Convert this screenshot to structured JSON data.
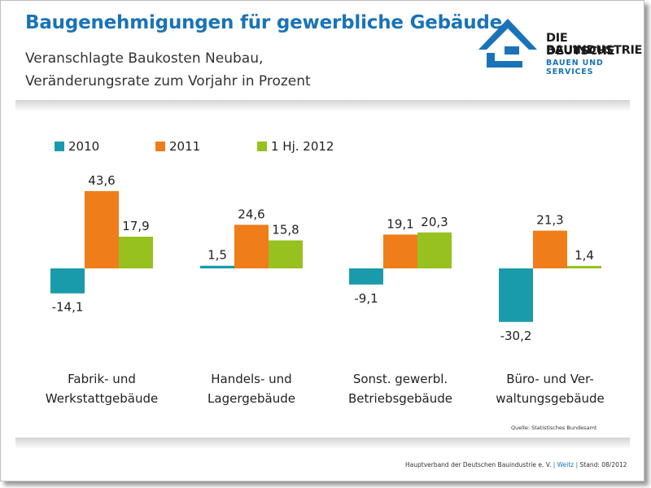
{
  "header": {
    "title": "Baugenehmigungen für gewerbliche Gebäude",
    "subtitle_line1": "Veranschlagte Baukosten Neubau,",
    "subtitle_line2": "Veränderungsrate zum Vorjahr in Prozent"
  },
  "logo": {
    "line1": "DIE DEUTSCHE",
    "line2": "BAUINDUSTRIE",
    "line3": "BAUEN UND SERVICES",
    "icon": "house-roof-icon",
    "color": "#1a73b8"
  },
  "colors": {
    "2010": "#1a9bab",
    "2011": "#ef7d1a",
    "1 Hj. 2012": "#97c11f",
    "title": "#1a73b8"
  },
  "chart_data": {
    "type": "bar",
    "categories": [
      [
        "Fabrik- und",
        "Werkstattgebäude"
      ],
      [
        "Handels- und",
        "Lagergebäude"
      ],
      [
        "Sonst. gewerbl.",
        "Betriebsgebäude"
      ],
      [
        "Büro- und Ver-",
        "waltungsgebäude"
      ]
    ],
    "series": [
      {
        "name": "2010",
        "values": [
          -14.1,
          1.5,
          -9.1,
          -30.2
        ],
        "labels": [
          "-14,1",
          "1,5",
          "-9,1",
          "-30,2"
        ]
      },
      {
        "name": "2011",
        "values": [
          43.6,
          24.6,
          19.1,
          21.3
        ],
        "labels": [
          "43,6",
          "24,6",
          "19,1",
          "21,3"
        ]
      },
      {
        "name": "1 Hj. 2012",
        "values": [
          17.9,
          15.8,
          20.3,
          1.4
        ],
        "labels": [
          "17,9",
          "15,8",
          "20,3",
          "1,4"
        ]
      }
    ],
    "legend_position": "top-left",
    "grid": false,
    "axes_visible": false,
    "ylim": [
      -35,
      50
    ]
  },
  "source_note": "Quelle: Statistisches Bundesamt",
  "footer": {
    "org": "Hauptverband der Deutschen Bauindustrie e. V.",
    "author": "Weitz",
    "status": "Stand: 08/2012"
  }
}
